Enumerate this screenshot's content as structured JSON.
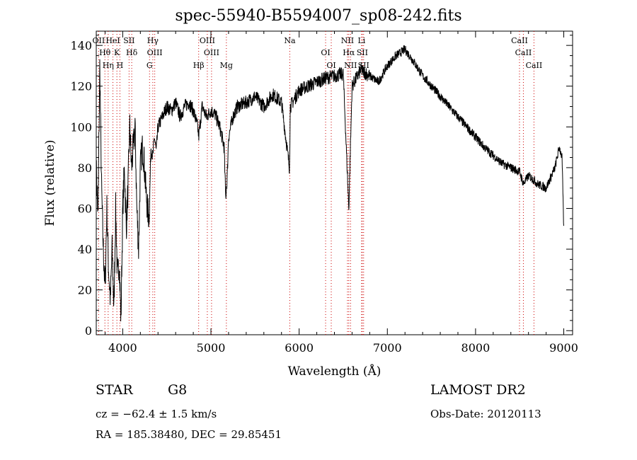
{
  "title": "spec-55940-B5594007_sp08-242.fits",
  "info": {
    "class": "STAR",
    "subclass": "G8",
    "survey": "LAMOST DR2",
    "cz": "cz = −62.4 ± 1.5 km/s",
    "obs_date": "Obs-Date: 20120113",
    "radec": "RA = 185.38480, DEC =  29.85451"
  },
  "chart_data": {
    "type": "line",
    "xlabel": "Wavelength (Å)",
    "ylabel": "Flux (relative)",
    "xlim": [
      3700,
      9100
    ],
    "ylim": [
      -2,
      147
    ],
    "xticks": [
      4000,
      5000,
      6000,
      7000,
      8000,
      9000
    ],
    "yticks": [
      0,
      20,
      40,
      60,
      80,
      100,
      120,
      140
    ],
    "line_color": "#000000",
    "marker_color": "#cc0000",
    "series": [
      {
        "x": [
          3700,
          3720,
          3740,
          3760,
          3780,
          3800,
          3820,
          3840,
          3860,
          3880,
          3900,
          3920,
          3940,
          3960,
          3980,
          4000,
          4020,
          4040,
          4060,
          4080,
          4100,
          4120,
          4140,
          4160,
          4180,
          4200,
          4220,
          4240,
          4260,
          4280,
          4300,
          4320,
          4340,
          4360,
          4380,
          4400,
          4450,
          4500,
          4550,
          4600,
          4650,
          4700,
          4750,
          4800,
          4850,
          4861,
          4900,
          4950,
          5000,
          5050,
          5100,
          5150,
          5167,
          5175,
          5184,
          5200,
          5250,
          5300,
          5400,
          5500,
          5600,
          5700,
          5800,
          5890,
          5900,
          6000,
          6100,
          6200,
          6300,
          6400,
          6500,
          6563,
          6600,
          6700,
          6800,
          6900,
          7000,
          7100,
          7200,
          7300,
          7400,
          7500,
          7600,
          7700,
          7800,
          7900,
          8000,
          8100,
          8200,
          8300,
          8400,
          8500,
          8542,
          8600,
          8662,
          8700,
          8800,
          8850,
          8900,
          8950,
          8980,
          9000
        ],
        "y": [
          80,
          55,
          130,
          70,
          40,
          20,
          60,
          30,
          15,
          40,
          10,
          60,
          25,
          35,
          5,
          60,
          80,
          50,
          70,
          100,
          80,
          90,
          100,
          60,
          40,
          80,
          90,
          85,
          70,
          60,
          55,
          90,
          85,
          95,
          88,
          100,
          105,
          110,
          108,
          112,
          105,
          110,
          112,
          108,
          100,
          95,
          110,
          105,
          108,
          106,
          100,
          90,
          65,
          70,
          75,
          95,
          105,
          110,
          112,
          115,
          110,
          116,
          112,
          80,
          110,
          118,
          120,
          122,
          124,
          125,
          126,
          60,
          120,
          128,
          125,
          122,
          130,
          135,
          138,
          132,
          125,
          120,
          115,
          110,
          105,
          100,
          95,
          90,
          86,
          82,
          80,
          78,
          72,
          76,
          74,
          72,
          70,
          75,
          80,
          90,
          85,
          50
        ]
      }
    ],
    "lines": [
      {
        "name": "OII",
        "x": 3727
      },
      {
        "name": "Hθ",
        "x": 3798
      },
      {
        "name": "Hη",
        "x": 3835
      },
      {
        "name": "HeI",
        "x": 3889
      },
      {
        "name": "K",
        "x": 3934
      },
      {
        "name": "H",
        "x": 3968
      },
      {
        "name": "SII",
        "x": 4072
      },
      {
        "name": "Hδ",
        "x": 4102
      },
      {
        "name": "G",
        "x": 4304
      },
      {
        "name": "Hγ",
        "x": 4341
      },
      {
        "name": "OIII",
        "x": 4363
      },
      {
        "name": "Hβ",
        "x": 4861
      },
      {
        "name": "OIII",
        "x": 4959
      },
      {
        "name": "OIII",
        "x": 5007
      },
      {
        "name": "Mg",
        "x": 5175
      },
      {
        "name": "Na",
        "x": 5894
      },
      {
        "name": "OI",
        "x": 6300
      },
      {
        "name": "OI",
        "x": 6364
      },
      {
        "name": "NII",
        "x": 6548
      },
      {
        "name": "Hα",
        "x": 6563
      },
      {
        "name": "NII",
        "x": 6583
      },
      {
        "name": "Li",
        "x": 6708
      },
      {
        "name": "SII",
        "x": 6716
      },
      {
        "name": "SII",
        "x": 6731
      },
      {
        "name": "CaII",
        "x": 8498
      },
      {
        "name": "CaII",
        "x": 8542
      },
      {
        "name": "CaII",
        "x": 8662
      }
    ]
  }
}
